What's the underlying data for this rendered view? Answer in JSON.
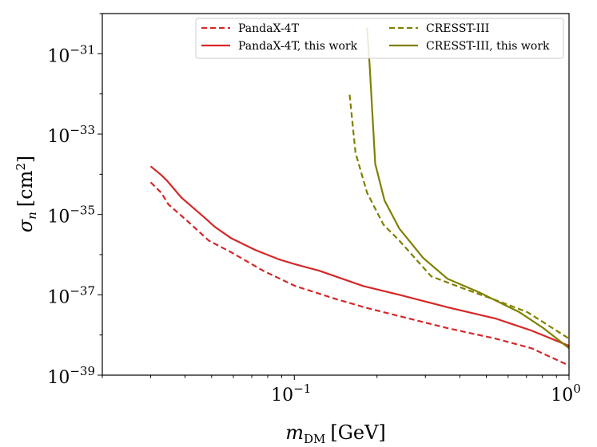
{
  "chart_data": {
    "type": "line",
    "title": "",
    "xlabel": {
      "main": "m",
      "sub": "DM",
      "unit": "[GeV]"
    },
    "ylabel": {
      "main": "σ",
      "sub": "n",
      "unit": "[cm",
      "unit_sup": "2",
      "unit_end": "]"
    },
    "xscale": "log",
    "yscale": "log",
    "xlim": [
      0.02,
      1
    ],
    "ylim_log10": [
      -39,
      -30
    ],
    "x_ticks": [
      {
        "value": 0.1,
        "base": "10",
        "exp": "−1"
      },
      {
        "value": 1,
        "base": "10",
        "exp": "0"
      }
    ],
    "y_ticks": [
      {
        "log10": -39,
        "base": "10",
        "exp": "−39"
      },
      {
        "log10": -37,
        "base": "10",
        "exp": "−37"
      },
      {
        "log10": -35,
        "base": "10",
        "exp": "−35"
      },
      {
        "log10": -33,
        "base": "10",
        "exp": "−33"
      },
      {
        "log10": -31,
        "base": "10",
        "exp": "−31"
      }
    ],
    "legend_position": "top-right",
    "series": [
      {
        "name": "PandaX-4T",
        "color": "#d62728",
        "style": "dashed",
        "x": [
          0.03,
          0.0328,
          0.0348,
          0.0406,
          0.0488,
          0.0589,
          0.0769,
          0.1007,
          0.141,
          0.184,
          0.241,
          0.361,
          0.54,
          0.73,
          1.0
        ],
        "y_log10": [
          -34.2,
          -34.46,
          -34.75,
          -35.15,
          -35.65,
          -35.94,
          -36.4,
          -36.78,
          -37.1,
          -37.33,
          -37.53,
          -37.83,
          -38.09,
          -38.33,
          -38.76
        ]
      },
      {
        "name": "PandaX-4T, this work",
        "color": "#d62728",
        "style": "solid",
        "x": [
          0.03,
          0.0328,
          0.0344,
          0.0388,
          0.0466,
          0.0514,
          0.0589,
          0.0719,
          0.088,
          0.1007,
          0.123,
          0.141,
          0.178,
          0.241,
          0.361,
          0.54,
          0.73,
          1.0
        ],
        "y_log10": [
          -33.8,
          -34.02,
          -34.16,
          -34.58,
          -35.05,
          -35.31,
          -35.59,
          -35.88,
          -36.12,
          -36.24,
          -36.4,
          -36.54,
          -36.78,
          -37.0,
          -37.31,
          -37.59,
          -37.89,
          -38.27
        ]
      },
      {
        "name": "CRESST-III",
        "color": "#808000",
        "style": "dashed",
        "x": [
          0.159,
          0.167,
          0.184,
          0.211,
          0.241,
          0.315,
          0.412,
          0.54,
          0.705,
          1.0
        ],
        "y_log10": [
          -32.02,
          -33.46,
          -34.46,
          -35.25,
          -35.65,
          -36.54,
          -36.84,
          -37.13,
          -37.43,
          -38.09
        ]
      },
      {
        "name": "CRESST-III, this work",
        "color": "#808000",
        "style": "solid",
        "x": [
          0.184,
          0.188,
          0.197,
          0.213,
          0.241,
          0.294,
          0.361,
          0.471,
          0.659,
          0.807,
          1.0
        ],
        "y_log10": [
          -30.35,
          -31.28,
          -33.74,
          -34.65,
          -35.35,
          -36.08,
          -36.6,
          -36.94,
          -37.43,
          -37.83,
          -38.33
        ]
      }
    ]
  }
}
